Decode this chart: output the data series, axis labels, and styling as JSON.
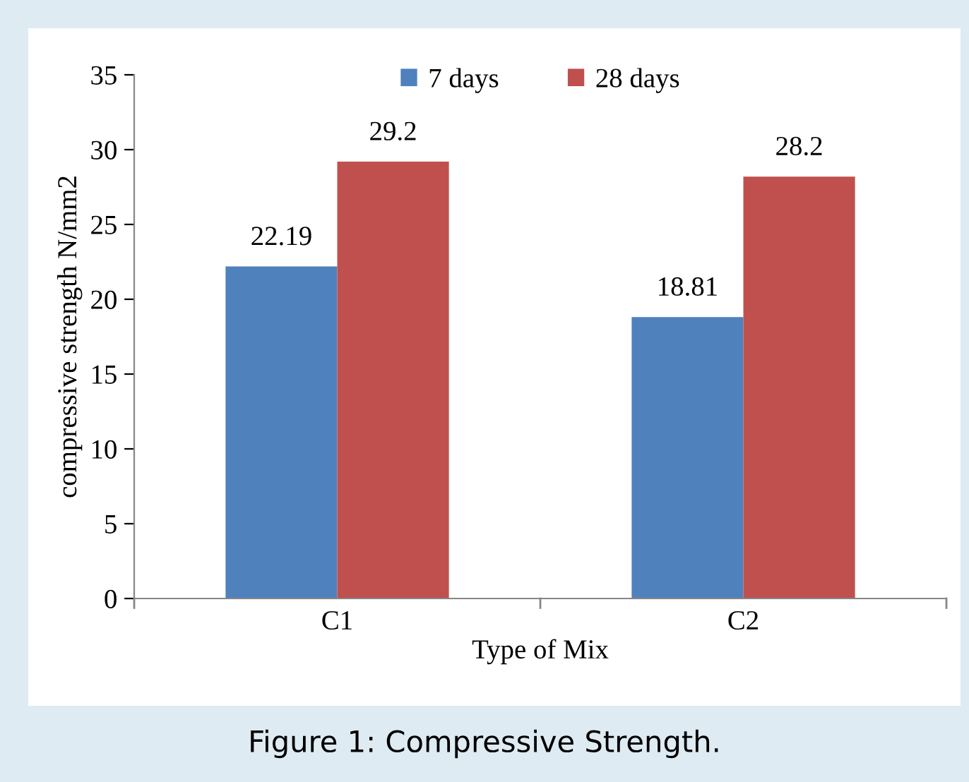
{
  "chart_data": {
    "type": "bar",
    "xlabel": "Type of Mix",
    "ylabel": "compressive strength N/mm2",
    "categories": [
      "C1",
      "C2"
    ],
    "series": [
      {
        "name": "7 days",
        "color": "#4f81bd",
        "values": [
          22.19,
          18.81
        ]
      },
      {
        "name": "28 days",
        "color": "#c0504d",
        "values": [
          29.2,
          28.2
        ]
      }
    ],
    "ylim": [
      0,
      35
    ],
    "yticks": [
      0,
      5,
      10,
      15,
      20,
      25,
      30,
      35
    ],
    "data_labels": true,
    "grid": false,
    "legend": "top",
    "annotations": [
      "Figure 1: Compressive Strength."
    ]
  }
}
